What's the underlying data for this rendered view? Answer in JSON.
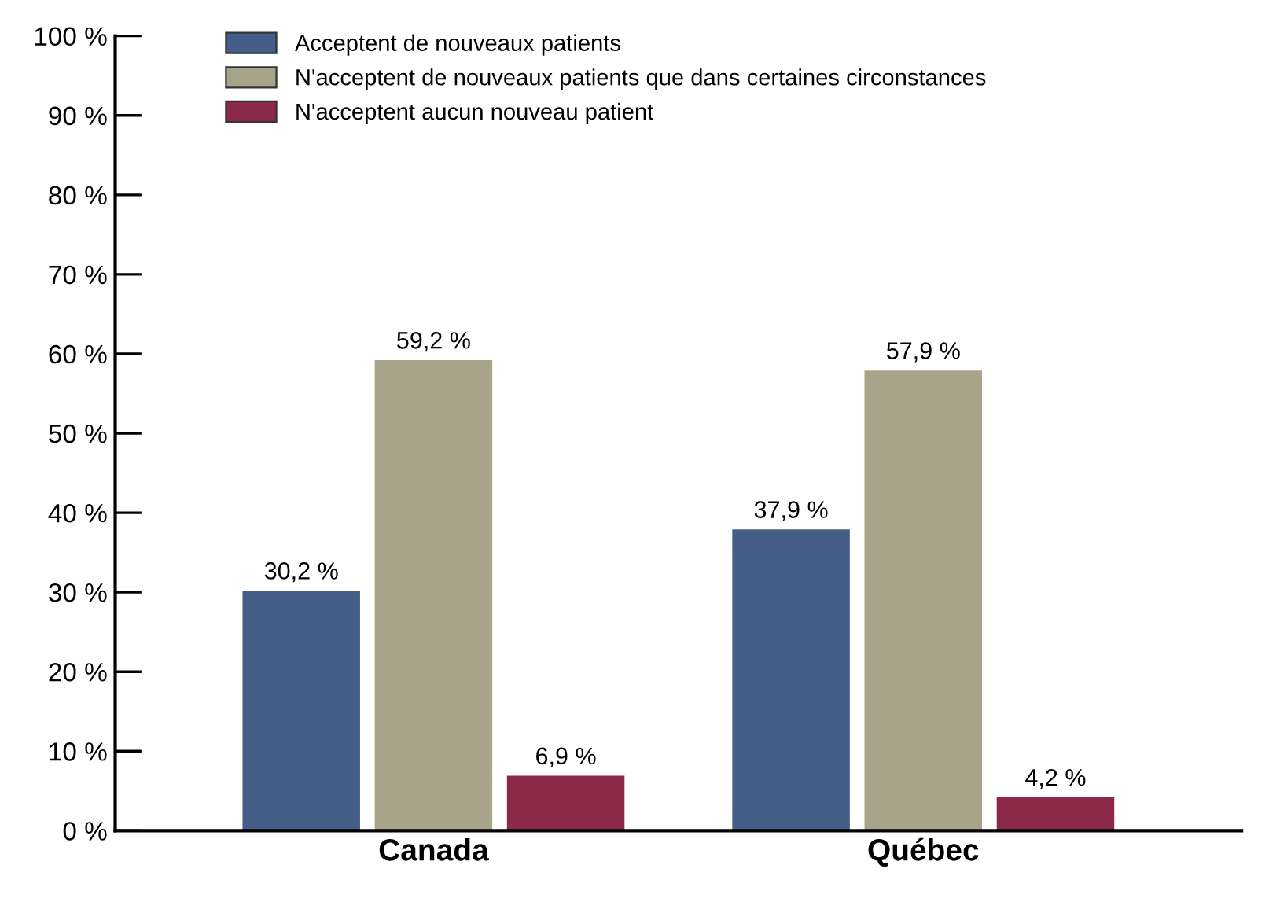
{
  "chart_data": {
    "type": "bar",
    "categories": [
      "Canada",
      "Québec"
    ],
    "series": [
      {
        "name": "Acceptent de nouveaux patients",
        "color": "#445e87",
        "values": [
          30.2,
          37.9
        ],
        "value_labels": [
          "30,2 %",
          "37,9 %"
        ]
      },
      {
        "name": "N'acceptent de nouveaux patients que dans certaines circonstances",
        "color": "#a8a48a",
        "values": [
          59.2,
          57.9
        ],
        "value_labels": [
          "59,2 %",
          "57,9 %"
        ]
      },
      {
        "name": "N'acceptent aucun nouveau patient",
        "color": "#8a2a48",
        "values": [
          6.9,
          4.2
        ],
        "value_labels": [
          "6,9 %",
          "4,2 %"
        ]
      }
    ],
    "ylim": [
      0,
      100
    ],
    "yticks": [
      {
        "value": 0,
        "label": "0 %"
      },
      {
        "value": 10,
        "label": "10 %"
      },
      {
        "value": 20,
        "label": "20 %"
      },
      {
        "value": 30,
        "label": "30 %"
      },
      {
        "value": 40,
        "label": "40 %"
      },
      {
        "value": 50,
        "label": "50 %"
      },
      {
        "value": 60,
        "label": "60 %"
      },
      {
        "value": 70,
        "label": "70 %"
      },
      {
        "value": 80,
        "label": "80 %"
      },
      {
        "value": 90,
        "label": "90 %"
      },
      {
        "value": 100,
        "label": "100 %"
      }
    ],
    "grid": false,
    "legend": "top left"
  }
}
